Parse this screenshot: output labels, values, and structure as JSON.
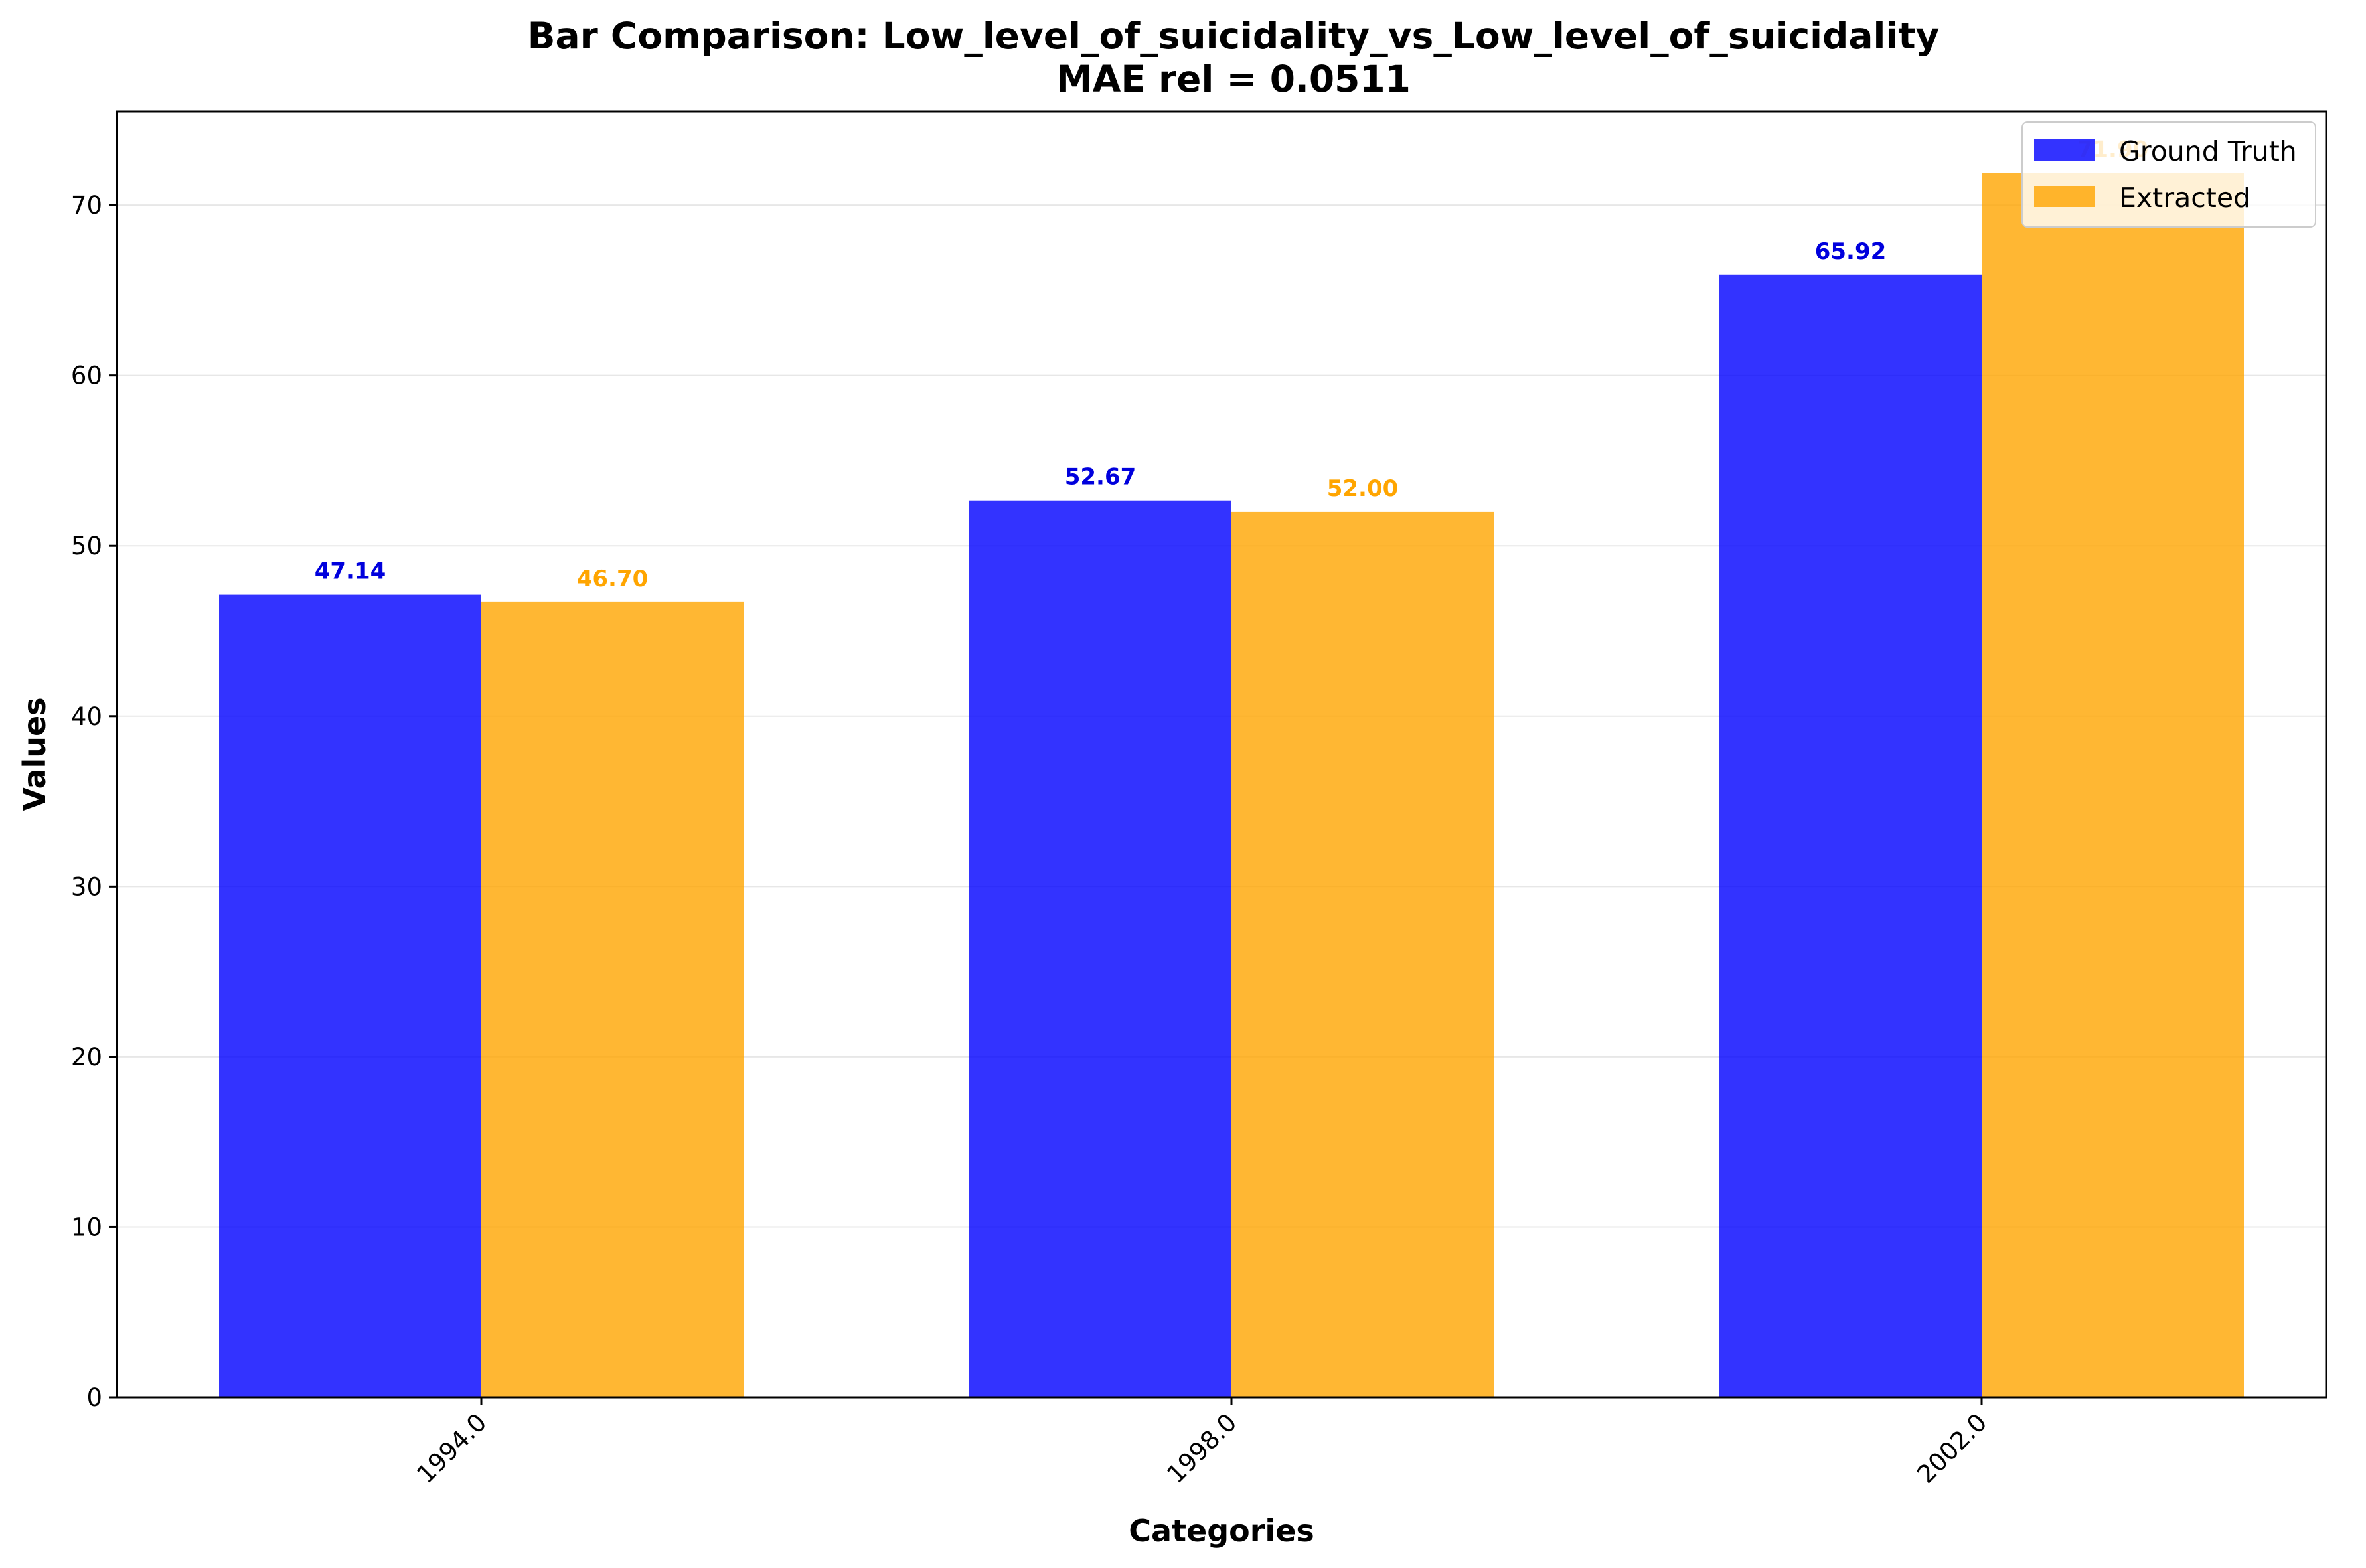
{
  "chart_data": {
    "type": "bar",
    "title_line1": "Bar Comparison: Low_level_of_suicidality_vs_Low_level_of_suicidality",
    "title_line2": "MAE rel = 0.0511",
    "xlabel": "Categories",
    "ylabel": "Values",
    "categories": [
      "1994.0",
      "1998.0",
      "2002.0"
    ],
    "ylim": [
      0,
      75.5
    ],
    "yticks": [
      0,
      10,
      20,
      30,
      40,
      50,
      60,
      70
    ],
    "grid": "horizontal",
    "legend_position": "top-right",
    "series": [
      {
        "name": "Ground Truth",
        "color": "#0000ff",
        "label_color": "#0000dd",
        "values": [
          47.14,
          52.67,
          65.92
        ],
        "value_labels": [
          "47.14",
          "52.67",
          "65.92"
        ]
      },
      {
        "name": "Extracted",
        "color": "#ffa500",
        "label_color": "#ffa500",
        "values": [
          46.7,
          52.0,
          71.9
        ],
        "value_labels": [
          "46.70",
          "52.00",
          "71.90"
        ]
      }
    ]
  }
}
